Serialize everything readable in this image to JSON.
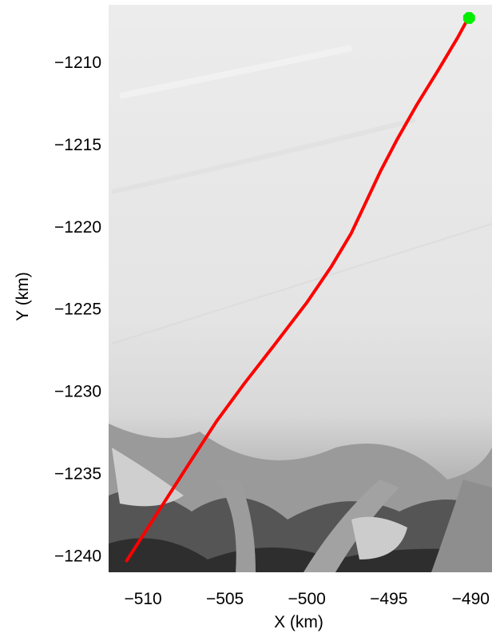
{
  "chart_data": {
    "type": "line",
    "title": "",
    "xlabel": "X (km)",
    "ylabel": "Y (km)",
    "xlim": [
      -512.1,
      -488.7
    ],
    "ylim": [
      -1241.0,
      -1206.5
    ],
    "xticks": [
      -510,
      -505,
      -500,
      -495,
      -490
    ],
    "yticks": [
      -1210,
      -1215,
      -1220,
      -1225,
      -1230,
      -1235,
      -1240
    ],
    "xtick_labels": [
      "−510",
      "−505",
      "−500",
      "−495",
      "−490"
    ],
    "ytick_labels": [
      "−1210",
      "−1215",
      "−1220",
      "−1225",
      "−1230",
      "−1235",
      "−1240"
    ],
    "background": "grayscale satellite image of ice sheet and glacier outlets",
    "grid": false,
    "series": [
      {
        "color": "#ff0000",
        "x": [
          -511.0,
          -509.0,
          -507.0,
          -505.5,
          -503.8,
          -502.0,
          -500.0,
          -498.5,
          -497.3,
          -496.4,
          -495.5,
          -494.5,
          -493.3,
          -492.0,
          -490.8,
          -490.2
        ],
        "y": [
          -1240.3,
          -1237.2,
          -1234.1,
          -1231.8,
          -1229.5,
          -1227.2,
          -1224.6,
          -1222.4,
          -1220.4,
          -1218.5,
          -1216.6,
          -1214.7,
          -1212.6,
          -1210.5,
          -1208.5,
          -1207.4
        ]
      }
    ],
    "markers": [
      {
        "shape": "octagon",
        "color": "#00ee00",
        "x": -490.1,
        "y": -1207.3
      }
    ]
  }
}
